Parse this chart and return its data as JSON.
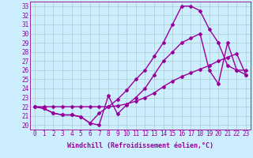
{
  "xlabel": "Windchill (Refroidissement éolien,°C)",
  "bg_color": "#cceeff",
  "line_color": "#990099",
  "grid_color": "#aacccc",
  "xlim": [
    -0.5,
    23.5
  ],
  "ylim": [
    19.5,
    33.5
  ],
  "xticks": [
    0,
    1,
    2,
    3,
    4,
    5,
    6,
    7,
    8,
    9,
    10,
    11,
    12,
    13,
    14,
    15,
    16,
    17,
    18,
    19,
    20,
    21,
    22,
    23
  ],
  "yticks": [
    20,
    21,
    22,
    23,
    24,
    25,
    26,
    27,
    28,
    29,
    30,
    31,
    32,
    33
  ],
  "series1_x": [
    0,
    1,
    2,
    3,
    4,
    5,
    6,
    7,
    8,
    9,
    10,
    11,
    12,
    13,
    14,
    15,
    16,
    17,
    18,
    19,
    20,
    21,
    22,
    23
  ],
  "series1_y": [
    22.0,
    21.8,
    21.3,
    21.1,
    21.1,
    20.9,
    20.2,
    20.0,
    23.2,
    21.2,
    22.2,
    23.0,
    24.0,
    25.5,
    27.0,
    28.0,
    29.0,
    29.5,
    30.0,
    26.0,
    24.5,
    29.0,
    26.0,
    26.0
  ],
  "series2_x": [
    0,
    1,
    2,
    3,
    4,
    5,
    6,
    7,
    8,
    9,
    10,
    11,
    12,
    13,
    14,
    15,
    16,
    17,
    18,
    19,
    20,
    21,
    22,
    23
  ],
  "series2_y": [
    22.0,
    21.8,
    21.3,
    21.1,
    21.1,
    20.9,
    20.2,
    21.3,
    22.0,
    22.8,
    23.8,
    25.0,
    26.0,
    27.5,
    29.0,
    31.0,
    33.0,
    33.0,
    32.5,
    30.5,
    29.0,
    26.5,
    26.0,
    25.5
  ],
  "series3_x": [
    0,
    1,
    2,
    3,
    4,
    5,
    6,
    7,
    8,
    9,
    10,
    11,
    12,
    13,
    14,
    15,
    16,
    17,
    18,
    19,
    20,
    21,
    22,
    23
  ],
  "series3_y": [
    22.0,
    22.0,
    22.0,
    22.0,
    22.0,
    22.0,
    22.0,
    22.0,
    22.0,
    22.1,
    22.3,
    22.6,
    23.0,
    23.5,
    24.2,
    24.8,
    25.3,
    25.7,
    26.1,
    26.5,
    27.0,
    27.4,
    27.8,
    25.5
  ],
  "marker": "D",
  "marker_size": 2,
  "line_width": 1.0,
  "xlabel_fontsize": 6,
  "tick_fontsize": 5.5
}
